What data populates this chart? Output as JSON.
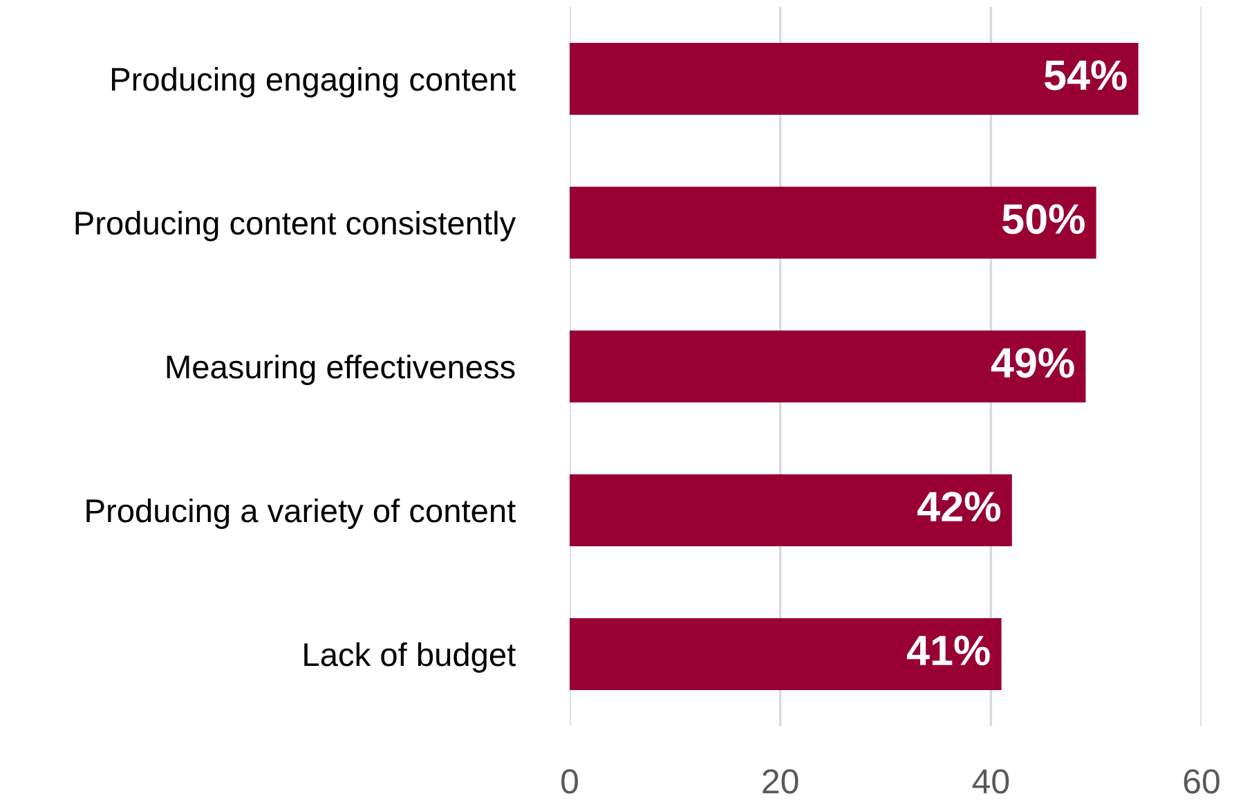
{
  "chart_data": {
    "type": "bar",
    "orientation": "horizontal",
    "categories": [
      "Producing engaging content",
      "Producing content consistently",
      "Measuring effectiveness",
      "Producing a variety of content",
      "Lack of budget"
    ],
    "values": [
      54,
      50,
      49,
      42,
      41
    ],
    "value_labels": [
      "54%",
      "50%",
      "49%",
      "42%",
      "41%"
    ],
    "color": "#990033",
    "xlim": [
      0,
      60
    ],
    "xticks": [
      0,
      20,
      40,
      60
    ],
    "grid": "x"
  }
}
